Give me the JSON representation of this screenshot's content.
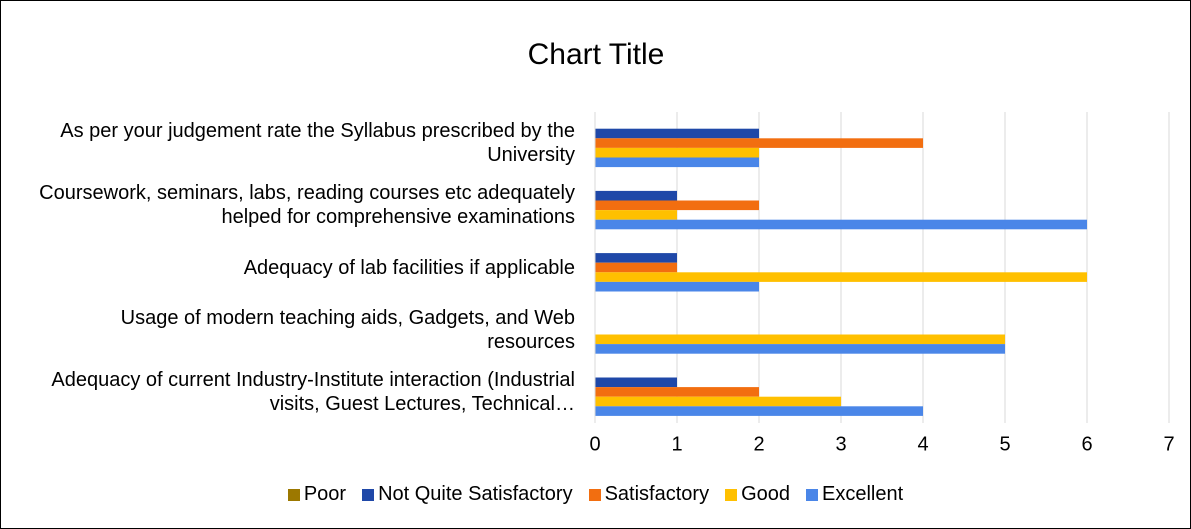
{
  "chart_data": {
    "type": "hbar",
    "title": "Chart Title",
    "categories": [
      "As per your judgement rate the Syllabus prescribed by the University",
      "Coursework, seminars, labs, reading courses etc adequately helped for comprehensive examinations",
      "Adequacy of lab facilities if applicable",
      "Usage of modern teaching aids, Gadgets, and Web resources",
      "Adequacy of current Industry-Institute interaction (Industrial visits, Guest Lectures, Technical…"
    ],
    "series": [
      {
        "name": "Poor",
        "color": "#9c7800",
        "values": [
          0,
          0,
          0,
          0,
          0
        ]
      },
      {
        "name": "Not Quite Satisfactory",
        "color": "#1f48a8",
        "values": [
          2,
          1,
          1,
          0,
          1
        ]
      },
      {
        "name": "Satisfactory",
        "color": "#f26e10",
        "values": [
          4,
          2,
          1,
          0,
          2
        ]
      },
      {
        "name": "Good",
        "color": "#ffc000",
        "values": [
          2,
          1,
          6,
          5,
          3
        ]
      },
      {
        "name": "Excellent",
        "color": "#4a86e8",
        "values": [
          2,
          6,
          2,
          5,
          4
        ]
      }
    ],
    "xlim": [
      0,
      7
    ],
    "xticks": [
      0,
      1,
      2,
      3,
      4,
      5,
      6,
      7
    ],
    "grid": true,
    "legend": "bottom"
  }
}
